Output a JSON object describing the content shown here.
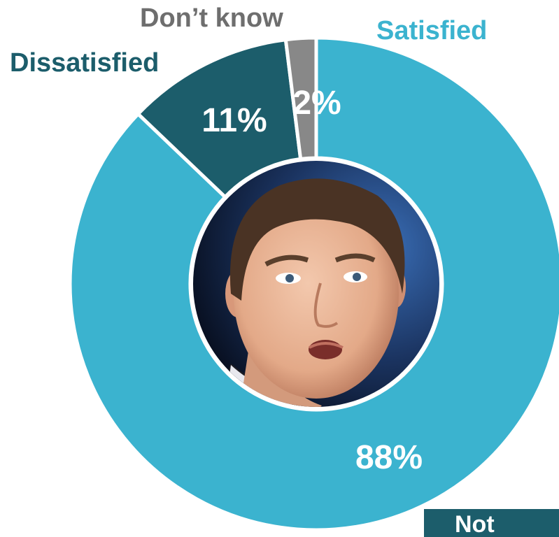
{
  "chart_data": {
    "type": "pie",
    "donut": true,
    "categories": [
      "Satisfied",
      "Dissatisfied",
      "Don’t know"
    ],
    "values": [
      88,
      11,
      2
    ],
    "data_labels": [
      "88%",
      "11%",
      "2%"
    ],
    "colors": [
      "#3bb3cf",
      "#1c5d6b",
      "#888888"
    ],
    "label_colors": [
      "#3bb3cf",
      "#1c5d6b",
      "#6e6e6e"
    ],
    "legend": "none",
    "center_image": "portrait-photo-of-man"
  },
  "note": {
    "label": "Not"
  }
}
